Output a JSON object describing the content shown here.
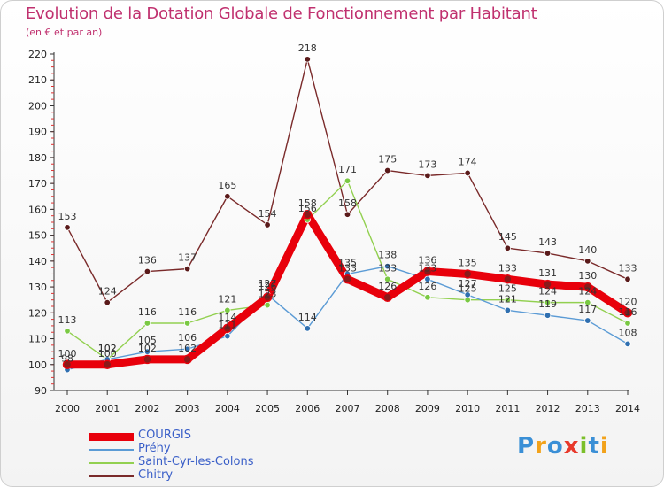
{
  "header": {
    "title": "Evolution de la Dotation Globale de Fonctionnement par Habitant",
    "subtitle": "(en € et par an)"
  },
  "brand": {
    "logo_text": "Proxiti",
    "logo_colors": [
      "#3a8fd6",
      "#f2a21a",
      "#3a8fd6",
      "#e8392b",
      "#7bbf2a",
      "#3a8fd6",
      "#f2a21a"
    ]
  },
  "chart_data": {
    "type": "line",
    "title": "Evolution de la Dotation Globale de Fonctionnement par Habitant",
    "subtitle": "(en € et par an)",
    "xlabel": "",
    "ylabel": "",
    "x": [
      "2000",
      "2001",
      "2002",
      "2003",
      "2004",
      "2005",
      "2006",
      "2007",
      "2008",
      "2009",
      "2010",
      "2011",
      "2012",
      "2013",
      "2014"
    ],
    "ylim": [
      90,
      220
    ],
    "yticks": [
      90,
      100,
      110,
      120,
      130,
      140,
      150,
      160,
      170,
      180,
      190,
      200,
      210,
      220
    ],
    "grid": false,
    "legend_position": "bottom-left",
    "series": [
      {
        "name": "COURGIS",
        "color": "#e8000b",
        "marker_color": "#8a1a1a",
        "values": [
          100,
          100,
          102,
          102,
          114,
          126,
          158,
          133,
          126,
          136,
          135,
          133,
          131,
          130,
          120
        ]
      },
      {
        "name": "Préhy",
        "color": "#5b9bd5",
        "marker_color": "#2f6fb0",
        "values": [
          98,
          102,
          105,
          106,
          111,
          127,
          114,
          135,
          138,
          133,
          127,
          121,
          119,
          117,
          108
        ]
      },
      {
        "name": "Saint-Cyr-les-Colons",
        "color": "#92d050",
        "marker_color": "#7ac943",
        "values": [
          113,
          102,
          116,
          116,
          121,
          123,
          156,
          171,
          133,
          126,
          125,
          125,
          124,
          124,
          116
        ]
      },
      {
        "name": "Chitry",
        "color": "#7a2a2a",
        "marker_color": "#5a1a1a",
        "values": [
          153,
          124,
          136,
          137,
          165,
          154,
          218,
          158,
          175,
          173,
          174,
          145,
          143,
          140,
          133
        ]
      }
    ]
  }
}
